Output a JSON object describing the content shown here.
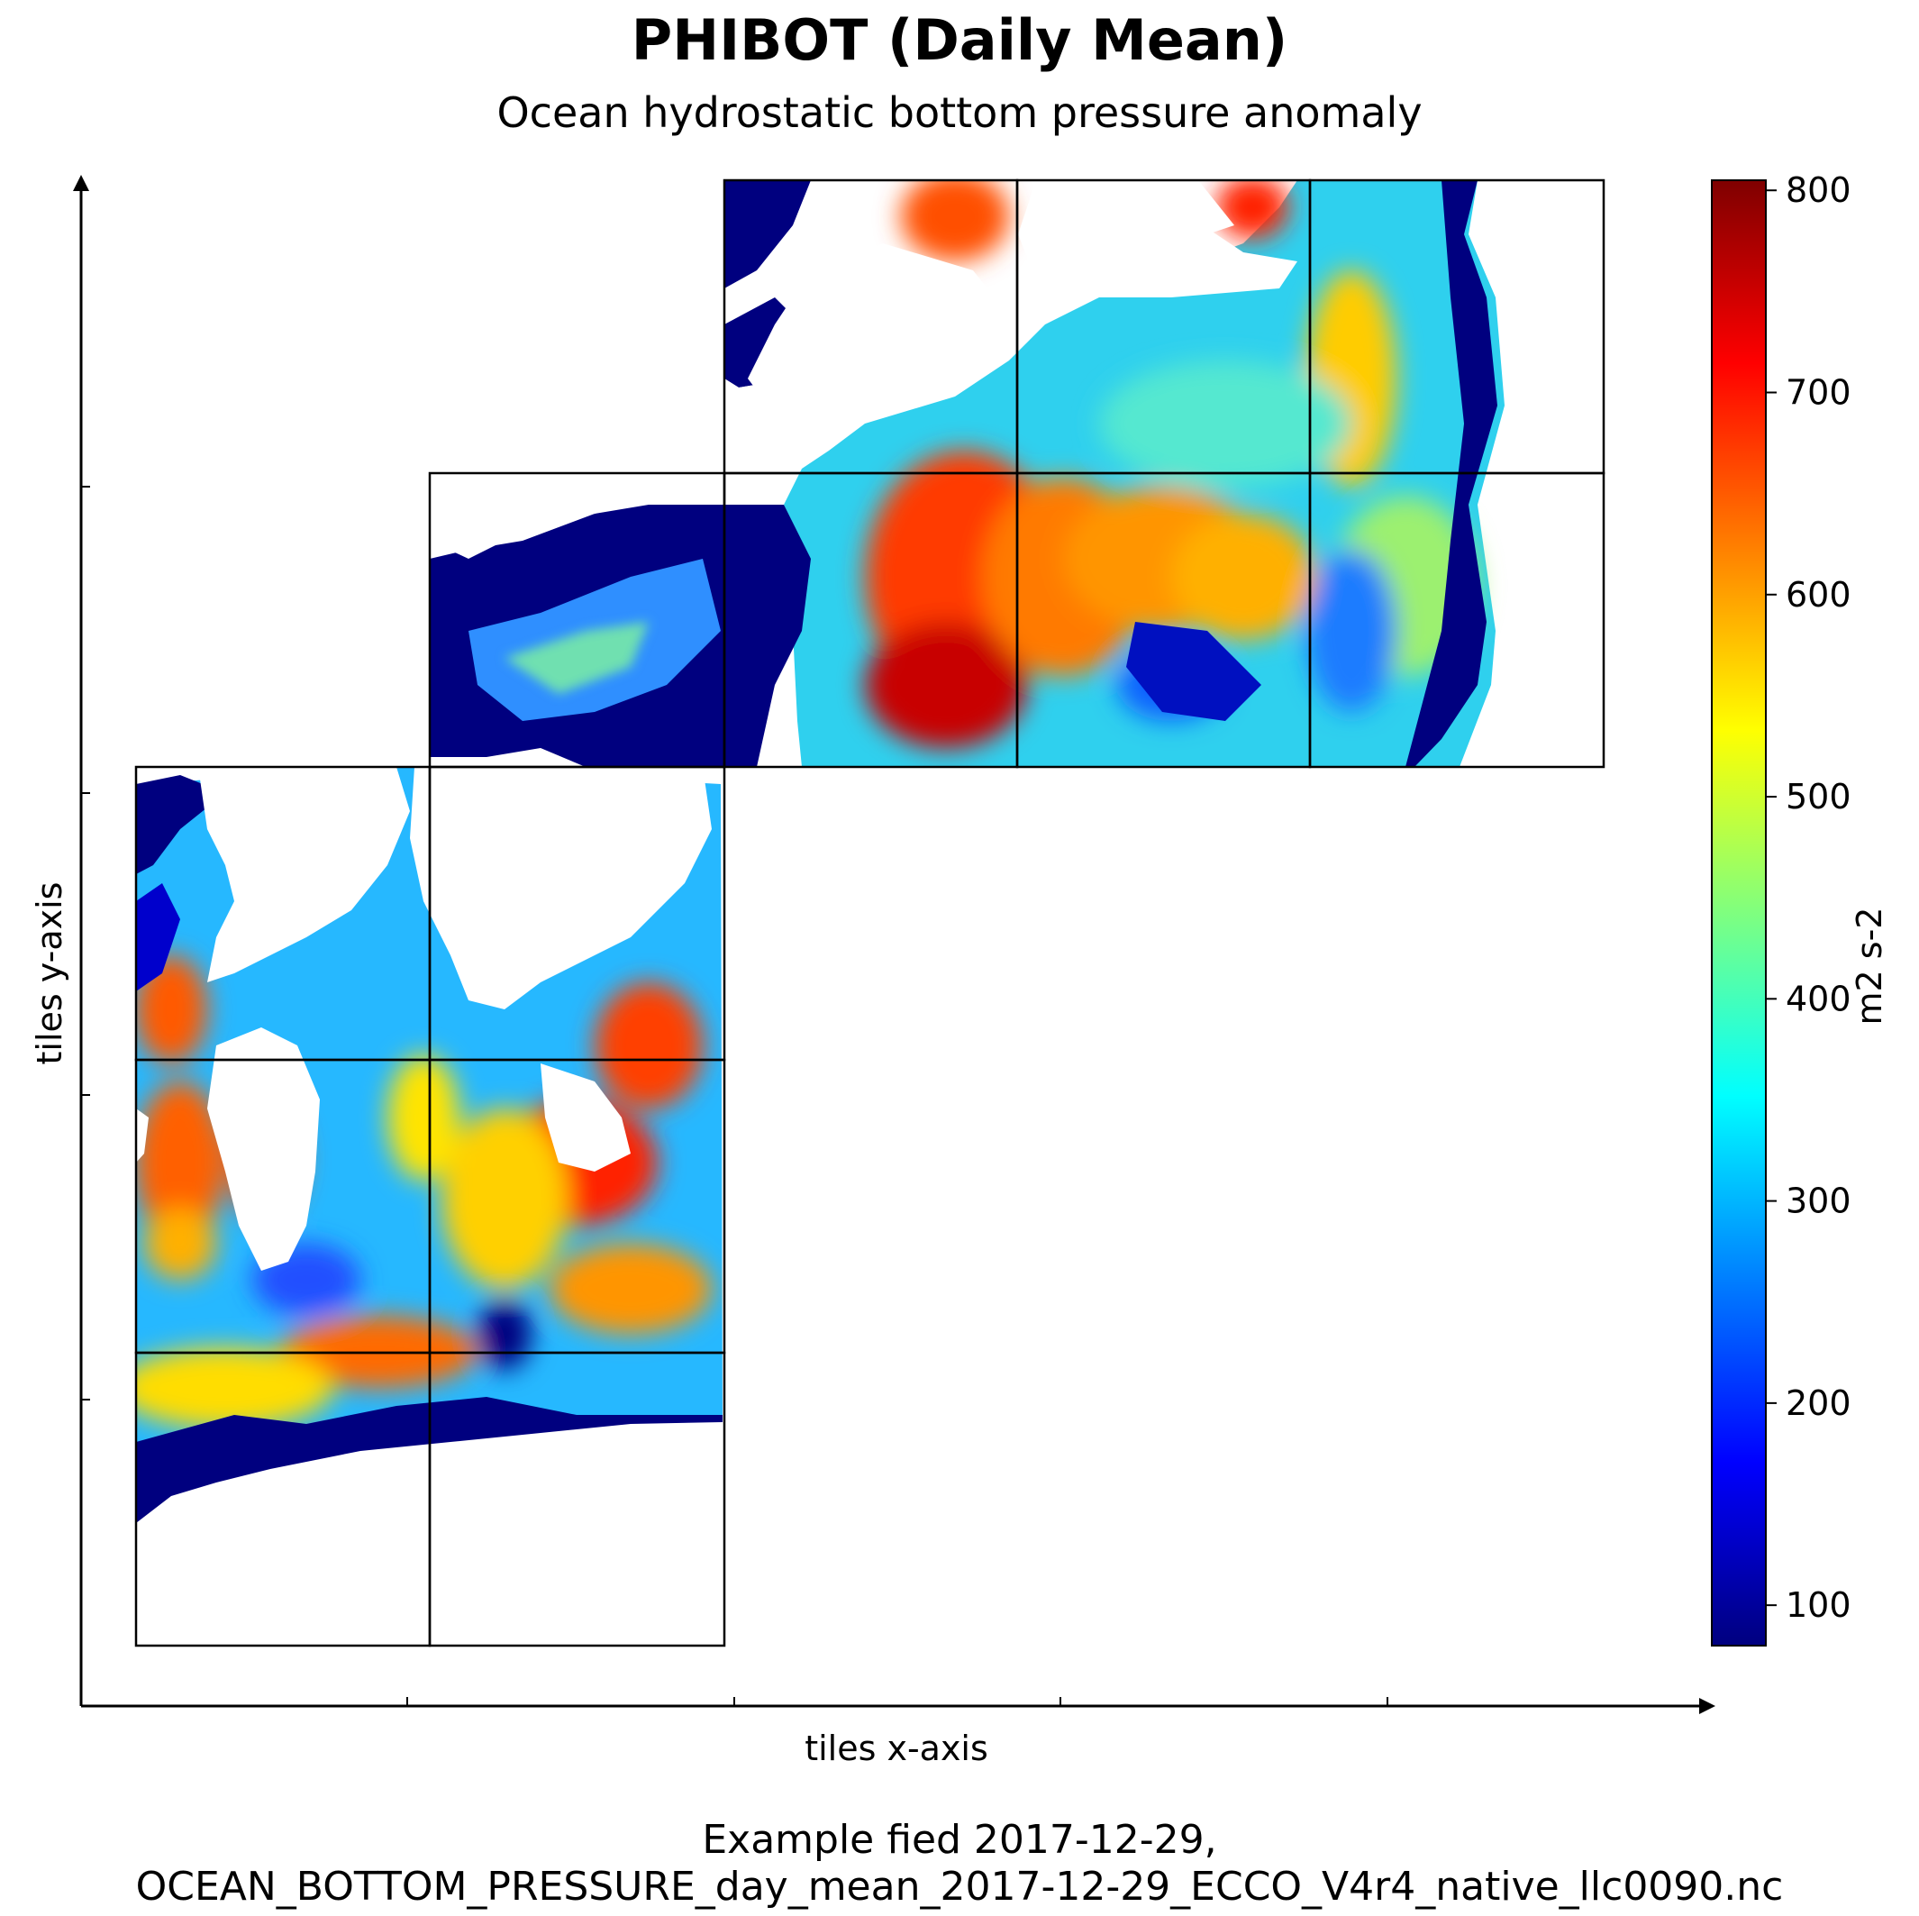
{
  "chart_data": {
    "type": "heatmap",
    "title": "PHIBOT (Daily Mean)",
    "subtitle": "Ocean hydrostatic bottom pressure anomaly",
    "xlabel": "tiles x-axis",
    "ylabel": "tiles y-axis",
    "colorbar": {
      "label": "m2 s-2",
      "colormap": "jet",
      "range": [
        80,
        805
      ],
      "ticks": [
        100,
        200,
        300,
        400,
        500,
        600,
        700,
        800
      ],
      "tick_labels": [
        "100",
        "200",
        "300",
        "400",
        "500",
        "600",
        "700",
        "800"
      ]
    },
    "tile_grid": {
      "rows_of_tiles": [
        {
          "row": "top",
          "tile_columns": [
            2,
            3,
            4
          ]
        },
        {
          "row": "upper-middle",
          "tile_columns": [
            1,
            2,
            3,
            4
          ]
        },
        {
          "row": "lower-middle",
          "tile_columns": [
            0,
            1
          ]
        },
        {
          "row": "lower",
          "tile_columns": [
            0,
            1
          ]
        },
        {
          "row": "bottom",
          "tile_columns": [
            0,
            1
          ]
        }
      ]
    },
    "caption": [
      "Example fied 2017-12-29,",
      "OCEAN_BOTTOM_PRESSURE_day_mean_2017-12-29_ECCO_V4r4_native_llc0090.nc"
    ]
  },
  "colors": {
    "jet_stops": [
      "#00007f",
      "#0000ff",
      "#007fff",
      "#00ffff",
      "#7fff7f",
      "#ffff00",
      "#ff7f00",
      "#ff0000",
      "#7f0000"
    ]
  }
}
